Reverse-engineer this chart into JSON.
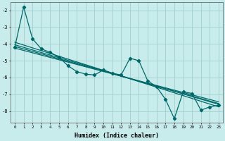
{
  "xlabel": "Humidex (Indice chaleur)",
  "background_color": "#c8ecec",
  "grid_color": "#a0cece",
  "line_color": "#006868",
  "xlim": [
    -0.5,
    23.5
  ],
  "ylim": [
    -8.7,
    -1.5
  ],
  "xticks": [
    0,
    1,
    2,
    3,
    4,
    5,
    6,
    7,
    8,
    9,
    10,
    11,
    12,
    13,
    14,
    15,
    16,
    17,
    18,
    19,
    20,
    21,
    22,
    23
  ],
  "yticks": [
    -8,
    -7,
    -6,
    -5,
    -4,
    -3,
    -2
  ],
  "data_x": [
    0,
    1,
    2,
    3,
    4,
    5,
    6,
    7,
    8,
    9,
    10,
    11,
    12,
    13,
    14,
    15,
    16,
    17,
    18,
    19,
    20,
    21,
    22,
    23
  ],
  "data_y": [
    -4.2,
    -1.8,
    -3.7,
    -4.3,
    -4.5,
    -4.8,
    -5.3,
    -5.65,
    -5.8,
    -5.85,
    -5.55,
    -5.75,
    -5.85,
    -4.85,
    -5.0,
    -6.2,
    -6.55,
    -7.3,
    -8.45,
    -6.85,
    -6.95,
    -7.95,
    -7.75,
    -7.65
  ],
  "trend_lines": [
    {
      "x": [
        0,
        23
      ],
      "y": [
        -3.9,
        -7.75
      ]
    },
    {
      "x": [
        0,
        23
      ],
      "y": [
        -4.05,
        -7.6
      ]
    },
    {
      "x": [
        0,
        23
      ],
      "y": [
        -4.15,
        -7.55
      ]
    },
    {
      "x": [
        0,
        23
      ],
      "y": [
        -4.25,
        -7.45
      ]
    }
  ]
}
